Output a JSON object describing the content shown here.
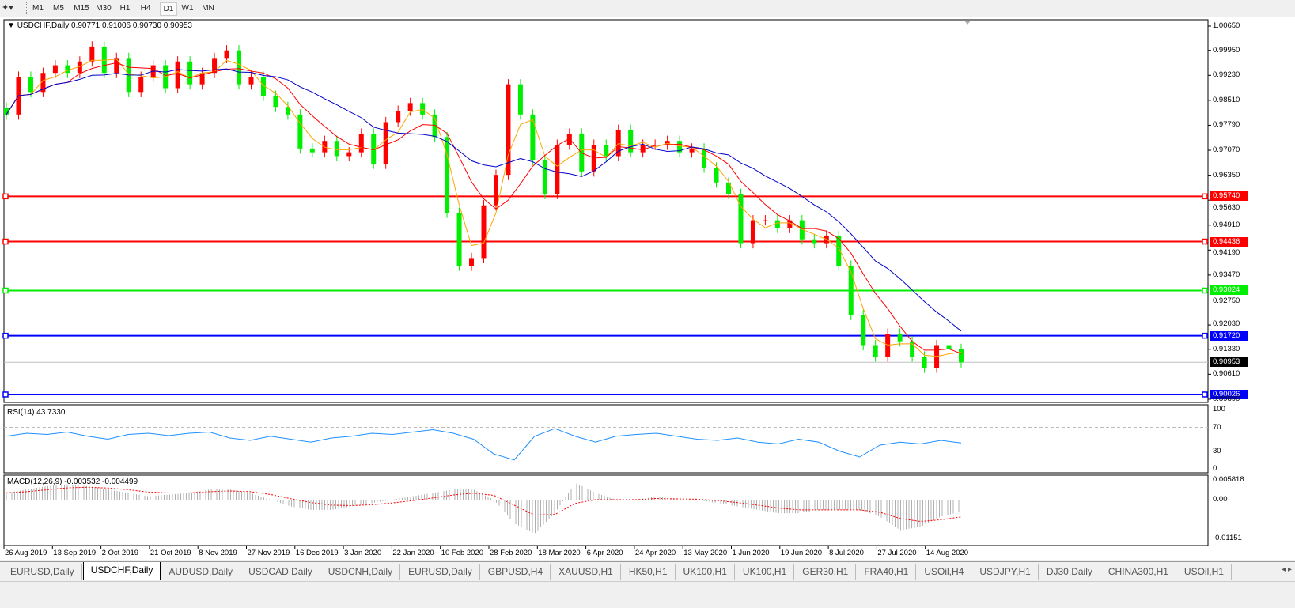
{
  "toolbar": {
    "timeframes": [
      "M1",
      "M5",
      "M15",
      "M30",
      "H1",
      "H4",
      "D1",
      "W1",
      "MN"
    ],
    "active": "D1"
  },
  "chart": {
    "header": "USDCHF,Daily  0.90771 0.91006 0.90730 0.90953",
    "symbol": "USDCHF",
    "timeframe": "Daily",
    "ohlc": {
      "open": 0.90771,
      "high": 0.91006,
      "low": 0.9073,
      "close": 0.90953
    },
    "bull_color": "#ff0000",
    "bear_color": "#00ee00",
    "ma_colors": [
      "#ffa500",
      "#ff0000",
      "#0000cc"
    ],
    "price_ticks": [
      "1.00650",
      "0.99950",
      "0.99230",
      "0.98510",
      "0.97790",
      "0.97070",
      "0.96350",
      "0.95630",
      "0.94910",
      "0.94190",
      "0.93470",
      "0.92750",
      "0.92030",
      "0.91330",
      "0.90610",
      "0.89890"
    ],
    "current_price": "0.90953",
    "levels": [
      {
        "price": "0.95740",
        "color": "#ff0000"
      },
      {
        "price": "0.94436",
        "color": "#ff0000"
      },
      {
        "price": "0.93024",
        "color": "#00ee00"
      },
      {
        "price": "0.91720",
        "color": "#0000ff"
      },
      {
        "price": "0.90026",
        "color": "#0000ff"
      }
    ]
  },
  "chart_data": {
    "type": "candlestick",
    "closes": [
      0.981,
      0.9919,
      0.9875,
      0.993,
      0.9952,
      0.993,
      0.9963,
      1.0006,
      0.993,
      0.9973,
      0.9875,
      0.9919,
      0.9952,
      0.9886,
      0.9963,
      0.9897,
      0.993,
      0.9973,
      0.9995,
      0.9897,
      0.9919,
      0.9864,
      0.9832,
      0.981,
      0.9712,
      0.9701,
      0.9734,
      0.969,
      0.9701,
      0.9755,
      0.9668,
      0.9788,
      0.9821,
      0.9843,
      0.981,
      0.9745,
      0.9527,
      0.9374,
      0.9396,
      0.9548,
      0.9636,
      0.9897,
      0.981,
      0.9679,
      0.9581,
      0.9723,
      0.9755,
      0.9646,
      0.9723,
      0.969,
      0.9766,
      0.9701,
      0.9723,
      0.9723,
      0.9734,
      0.9701,
      0.9712,
      0.9657,
      0.9614,
      0.9581,
      0.9439,
      0.9505,
      0.9505,
      0.9483,
      0.9505,
      0.945,
      0.9439,
      0.9461,
      0.9374,
      0.9232,
      0.9145,
      0.9112,
      0.9178,
      0.9156,
      0.9112,
      0.908,
      0.9145,
      0.9134,
      0.90953
    ],
    "ylim": [
      0.8989,
      1.0065
    ],
    "dates": [
      "26 Aug 2019",
      "13 Sep 2019",
      "2 Oct 2019",
      "21 Oct 2019",
      "8 Nov 2019",
      "27 Nov 2019",
      "16 Dec 2019",
      "3 Jan 2020",
      "22 Jan 2020",
      "10 Feb 2020",
      "28 Feb 2020",
      "18 Mar 2020",
      "6 Apr 2020",
      "24 Apr 2020",
      "13 May 2020",
      "1 Jun 2020",
      "19 Jun 2020",
      "8 Jul 2020",
      "27 Jul 2020",
      "14 Aug 2020"
    ]
  },
  "rsi": {
    "label": "RSI(14) 43.7330",
    "ticks": [
      "100",
      "70",
      "30",
      "0"
    ],
    "color": "#1e90ff",
    "values": [
      55,
      60,
      58,
      62,
      55,
      50,
      58,
      60,
      56,
      60,
      62,
      52,
      48,
      55,
      50,
      45,
      52,
      55,
      60,
      58,
      62,
      66,
      60,
      50,
      25,
      15,
      55,
      68,
      55,
      45,
      55,
      58,
      60,
      55,
      50,
      48,
      52,
      45,
      42,
      50,
      45,
      30,
      20,
      40,
      45,
      42,
      48,
      43.733
    ]
  },
  "macd": {
    "label": "MACD(12,26,9) -0.003532 -0.004499",
    "ticks": [
      "0.005818",
      "0.00",
      "-0.01151"
    ],
    "histogram": [
      0.002,
      0.003,
      0.004,
      0.0045,
      0.004,
      0.003,
      0.002,
      0.001,
      0.0015,
      0.002,
      0.003,
      0.003,
      0.002,
      0.0,
      -0.002,
      -0.003,
      -0.003,
      -0.002,
      -0.001,
      0.0,
      0.001,
      0.002,
      0.003,
      0.003,
      0.0,
      -0.007,
      -0.01,
      -0.004,
      0.005,
      0.002,
      0.0,
      0.0,
      0.001,
      0.0,
      0.0,
      -0.001,
      -0.002,
      -0.003,
      -0.004,
      -0.004,
      -0.003,
      -0.003,
      -0.003,
      -0.005,
      -0.009,
      -0.008,
      -0.005,
      -0.003532
    ],
    "signal_color": "#ff0000"
  },
  "tabs": [
    "EURUSD,Daily",
    "USDCHF,Daily",
    "AUDUSD,Daily",
    "USDCAD,Daily",
    "USDCNH,Daily",
    "EURUSD,Daily",
    "GBPUSD,H4",
    "XAUUSD,H1",
    "HK50,H1",
    "UK100,H1",
    "UK100,H1",
    "GER30,H1",
    "FRA40,H1",
    "USOil,H4",
    "USDJPY,H1",
    "DJ30,Daily",
    "CHINA300,H1",
    "USOil,H1"
  ],
  "active_tab": 1
}
